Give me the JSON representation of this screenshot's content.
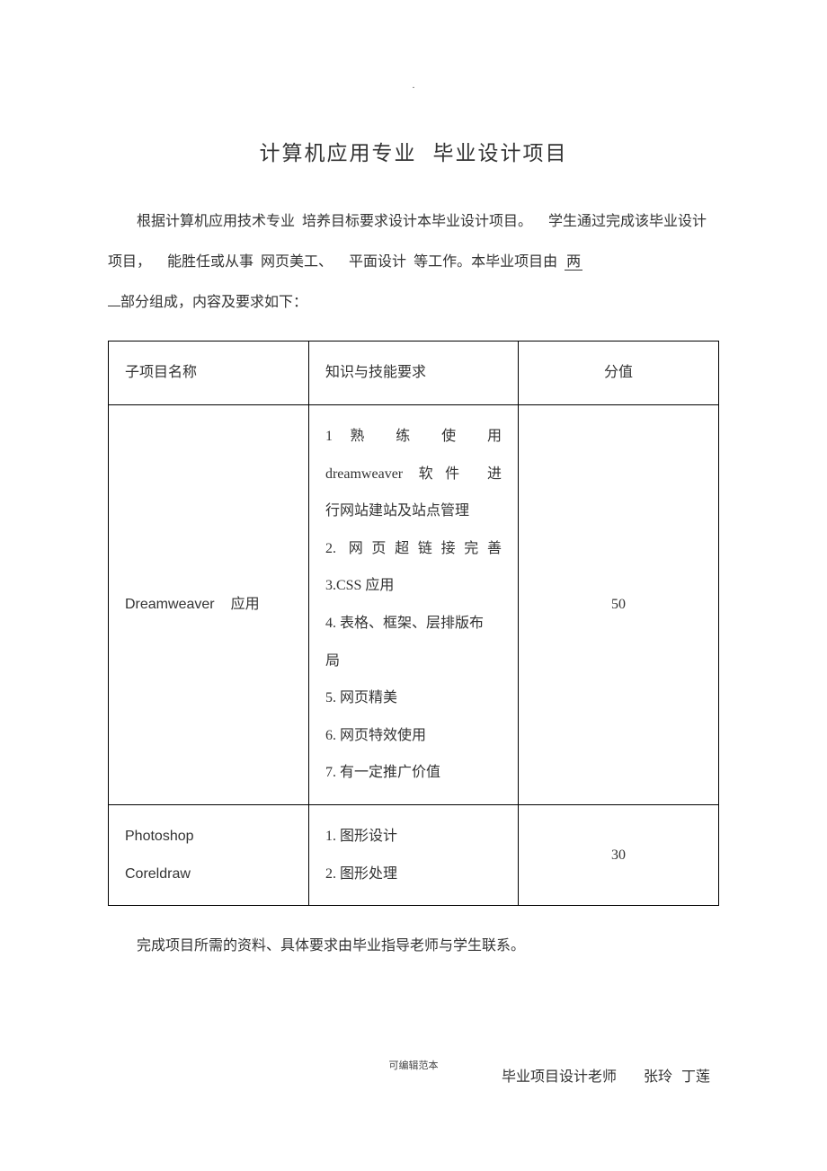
{
  "title_part1": "计算机应用专业",
  "title_part2": "毕业设计项目",
  "intro": {
    "seg1": "根据计算机应用技术专业",
    "seg2": "培养目标要求设计本毕业设计项目。",
    "seg3": "学生通过完成该毕业设计项目，",
    "seg4": "能胜任或从事",
    "seg5": "网页美工、",
    "seg6": "平面设计",
    "seg7": "等工作。本毕业项目由",
    "underlined": "两",
    "seg8": "部分组成，内容及要求如下："
  },
  "table": {
    "header": {
      "col1": "子项目名称",
      "col2": "知识与技能要求",
      "col3": "分值"
    },
    "row1": {
      "name_a": "Dreamweaver",
      "name_b": "应用",
      "req_l1a": "1",
      "req_l1b": "熟",
      "req_l1c": "练",
      "req_l1d": "使",
      "req_l1e": "用",
      "req_l2a": "dreamweaver",
      "req_l2b": "软件",
      "req_l2c": "进",
      "req_l3": "行网站建站及站点管理",
      "req_l4a": "2.",
      "req_l4b": "网页超链接完善",
      "req_l5": "3.CSS 应用",
      "req_l6": "4. 表格、框架、层排版布",
      "req_l7": "局",
      "req_l8": "5. 网页精美",
      "req_l9": "6. 网页特效使用",
      "req_l10": "7. 有一定推广价值",
      "score": "50"
    },
    "row2": {
      "name_a": "Photoshop",
      "name_b": "Coreldraw",
      "req_a": "1. 图形设计",
      "req_b": "2. 图形处理",
      "score": "30"
    }
  },
  "after_table": "完成项目所需的资料、具体要求由毕业指导老师与学生联系。",
  "signature": {
    "label": "毕业项目设计老师",
    "name1": "张玲",
    "name2": "丁莲"
  },
  "footer": "可编辑范本",
  "dot": "."
}
